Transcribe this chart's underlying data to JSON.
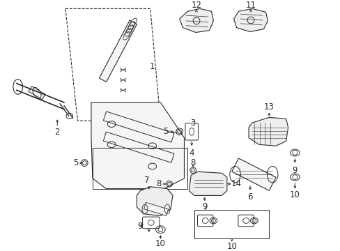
{
  "bg_color": "#ffffff",
  "line_color": "#2a2a2a",
  "lw": 0.7,
  "font_size": 7.5,
  "label_font_size": 8.5
}
